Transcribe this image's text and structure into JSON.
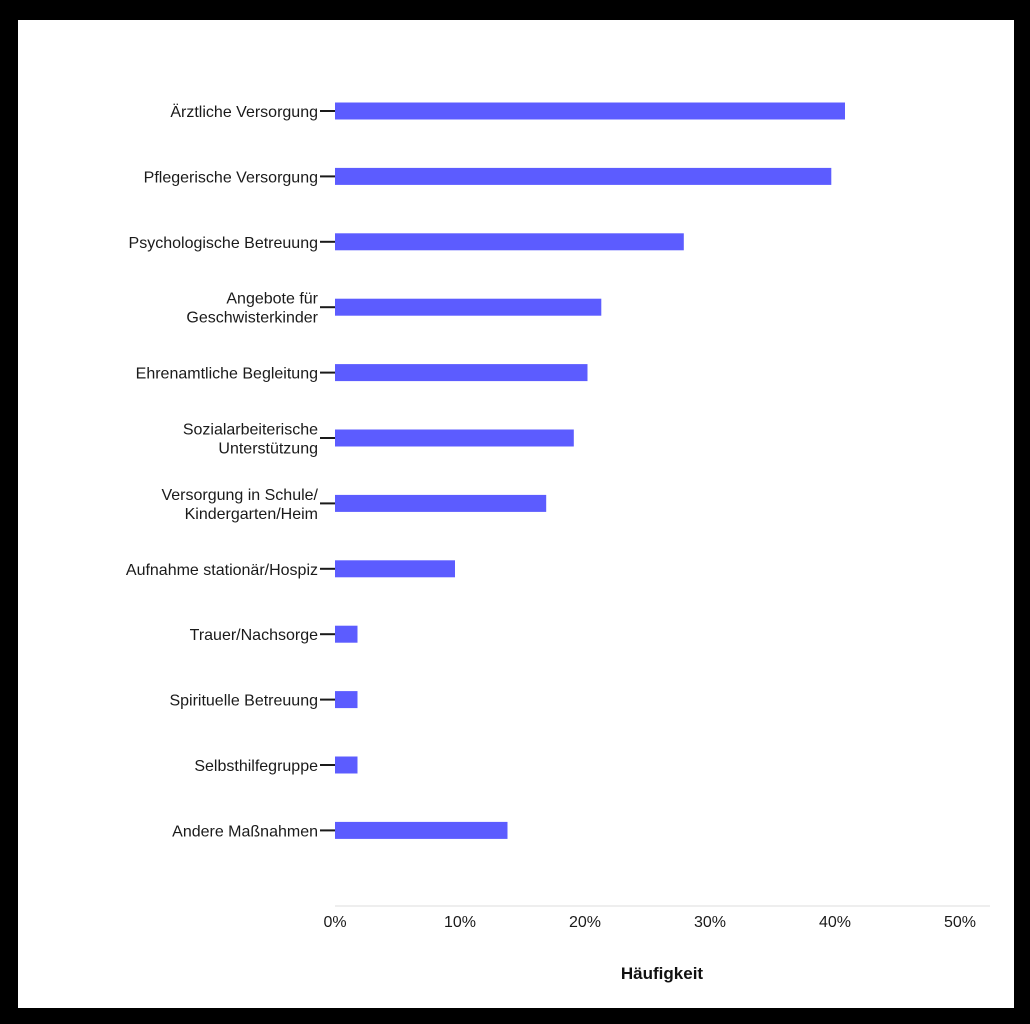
{
  "chart_data": {
    "type": "bar",
    "orientation": "horizontal",
    "categories": [
      "Ärztliche Versorgung",
      "Pflegerische Versorgung",
      "Psychologische Betreuung",
      "Angebote für Geschwisterkinder",
      "Ehrenamtliche Begleitung",
      "Sozialarbeiterische Unterstützung",
      "Versorgung in Schule/ Kindergarten/Heim",
      "Aufnahme stationär/Hospiz",
      "Trauer/Nachsorge",
      "Spirituelle Betreuung",
      "Selbsthilfegruppe",
      "Andere Maßnahmen"
    ],
    "category_lines": [
      [
        "Ärztliche Versorgung"
      ],
      [
        "Pflegerische Versorgung"
      ],
      [
        "Psychologische Betreuung"
      ],
      [
        "Angebote für",
        "Geschwisterkinder"
      ],
      [
        "Ehrenamtliche Begleitung"
      ],
      [
        "Sozialarbeiterische",
        "Unterstützung"
      ],
      [
        "Versorgung in Schule/",
        "Kindergarten/Heim"
      ],
      [
        "Aufnahme stationär/Hospiz"
      ],
      [
        "Trauer/Nachsorge"
      ],
      [
        "Spirituelle Betreuung"
      ],
      [
        "Selbsthilfegruppe"
      ],
      [
        "Andere Maßnahmen"
      ]
    ],
    "values": [
      40.8,
      39.7,
      27.9,
      21.3,
      20.2,
      19.1,
      16.9,
      9.6,
      1.8,
      1.8,
      1.8,
      13.8
    ],
    "xlabel": "Häufigkeit",
    "ylabel": "",
    "xlim": [
      0,
      50
    ],
    "xticks": [
      0,
      10,
      20,
      30,
      40,
      50
    ],
    "xtick_labels": [
      "0%",
      "10%",
      "20%",
      "30%",
      "40%",
      "50%"
    ],
    "grid": false,
    "legend": "none",
    "bar_color": "#5c5cff"
  }
}
